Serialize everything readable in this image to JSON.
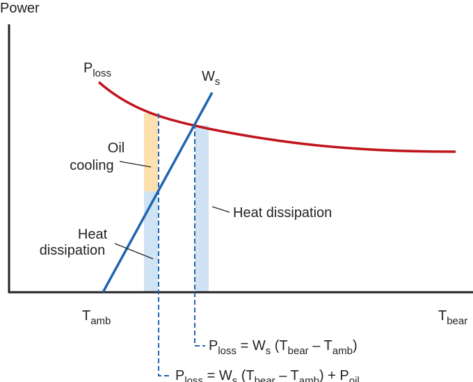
{
  "axis": {
    "y_label": "Power",
    "x_start": [
      {
        "text": "T"
      },
      {
        "sub": "amb"
      }
    ],
    "x_end": [
      {
        "text": "T"
      },
      {
        "sub": "bear"
      }
    ]
  },
  "curves": {
    "loss": [
      {
        "text": "P"
      },
      {
        "sub": "loss"
      }
    ],
    "supply": [
      {
        "text": "W"
      },
      {
        "sub": "s"
      }
    ]
  },
  "labels": {
    "oil_cooling": [
      "Oil",
      "cooling"
    ],
    "heat_left": [
      "Heat",
      "dissipation"
    ],
    "heat_right": "Heat dissipation"
  },
  "equations": [
    [
      {
        "text": "P"
      },
      {
        "sub": "loss"
      },
      {
        "text": " = W"
      },
      {
        "sub": "s"
      },
      {
        "text": " (T"
      },
      {
        "sub": "bear"
      },
      {
        "text": " – T"
      },
      {
        "sub": "amb"
      },
      {
        "text": ")"
      }
    ],
    [
      {
        "text": "P"
      },
      {
        "sub": "loss"
      },
      {
        "text": " = W"
      },
      {
        "sub": "s"
      },
      {
        "text": " (T"
      },
      {
        "sub": "bear"
      },
      {
        "text": " – T"
      },
      {
        "sub": "amb"
      },
      {
        "text": ") + P"
      },
      {
        "sub": "oil"
      }
    ]
  ]
}
